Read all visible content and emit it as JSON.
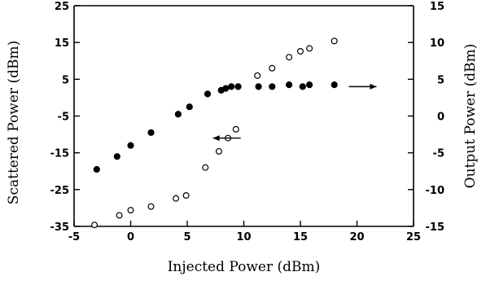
{
  "chart_data": {
    "type": "scatter",
    "xlabel": "Injected Power (dBm)",
    "ylabel_left": "Scattered Power (dBm)",
    "ylabel_right": "Output Power (dBm)",
    "xlim": [
      -5,
      25
    ],
    "ylim_left": [
      -35,
      25
    ],
    "ylim_right": [
      -15,
      15
    ],
    "x_ticks": [
      -5,
      0,
      5,
      10,
      15,
      20,
      25
    ],
    "y_left_ticks": [
      -35,
      -25,
      -15,
      -5,
      5,
      15,
      25
    ],
    "y_right_ticks": [
      -15,
      -10,
      -5,
      0,
      5,
      10,
      15
    ],
    "y_left_tick_labels": [
      "-35",
      "-25",
      "-15",
      "-5",
      "5",
      "15",
      "25"
    ],
    "y_right_tick_labels": [
      "-15",
      "-10",
      "-5",
      "0",
      "5",
      "10",
      "15"
    ],
    "x_tick_labels": [
      "-5",
      "0",
      "5",
      "10",
      "15",
      "20",
      "25"
    ],
    "grid": false,
    "series": [
      {
        "marker": "filled-circle",
        "axis": "left",
        "x": [
          -3.0,
          -1.2,
          0.0,
          1.8,
          4.2,
          5.2,
          6.8,
          8.0,
          8.4,
          8.9,
          9.5,
          11.3,
          12.5,
          14.0,
          15.2,
          15.8,
          18.0
        ],
        "y": [
          -19.5,
          -16.0,
          -13.0,
          -9.5,
          -4.5,
          -2.5,
          1.0,
          2.0,
          2.5,
          3.0,
          3.0,
          3.0,
          3.0,
          3.5,
          3.0,
          3.5,
          3.5
        ]
      },
      {
        "marker": "open-circle",
        "axis": "right",
        "x": [
          -3.2,
          -1.0,
          0.0,
          1.8,
          4.0,
          4.9,
          6.6,
          7.8,
          8.6,
          9.3,
          11.2,
          12.5,
          14.0,
          15.0,
          15.8,
          18.0
        ],
        "y": [
          -14.8,
          -13.5,
          -12.8,
          -12.3,
          -11.2,
          -10.8,
          -7.0,
          -4.8,
          -3.0,
          -1.8,
          5.5,
          6.5,
          8.0,
          8.8,
          9.2,
          10.2
        ]
      }
    ],
    "annotations": [
      {
        "type": "arrow",
        "direction": "left",
        "target_axis": "left",
        "x": 8.5,
        "y": -11.0
      },
      {
        "type": "arrow",
        "direction": "right",
        "target_axis": "right",
        "x": 20.5,
        "y": 4.0
      }
    ]
  }
}
